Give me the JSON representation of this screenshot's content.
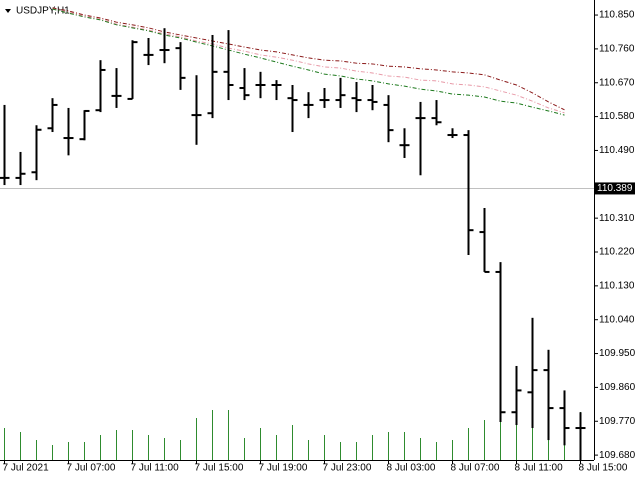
{
  "chart_data": {
    "type": "ohlc",
    "title": "USDJPY,H1",
    "categories": [
      "7 Jul 2021",
      null,
      null,
      null,
      "7 Jul 07:00",
      null,
      null,
      null,
      "7 Jul 11:00",
      null,
      null,
      null,
      "7 Jul 15:00",
      null,
      null,
      null,
      "7 Jul 19:00",
      null,
      null,
      null,
      "7 Jul 23:00",
      null,
      null,
      null,
      "8 Jul 03:00",
      null,
      null,
      null,
      "8 Jul 07:00",
      null,
      null,
      null,
      "8 Jul 11:00",
      null,
      null,
      null,
      "8 Jul 15:00"
    ],
    "open": [
      110.417,
      110.417,
      110.432,
      110.549,
      110.523,
      110.52,
      110.597,
      110.635,
      110.627,
      110.744,
      110.757,
      110.762,
      110.584,
      110.589,
      110.699,
      110.656,
      110.664,
      110.664,
      110.629,
      110.611,
      110.624,
      110.624,
      110.629,
      110.624,
      110.611,
      110.504,
      110.576,
      110.576,
      110.531,
      110.531,
      110.273,
      110.167,
      109.794,
      109.847,
      109.906,
      109.805,
      109.752
    ],
    "high": [
      110.611,
      110.486,
      110.557,
      110.629,
      110.603,
      110.597,
      110.73,
      110.709,
      110.783,
      110.789,
      110.815,
      110.778,
      110.69,
      110.797,
      110.81,
      110.709,
      110.699,
      110.677,
      110.664,
      110.645,
      110.656,
      110.683,
      110.672,
      110.664,
      110.637,
      110.549,
      110.619,
      110.624,
      110.549,
      110.544,
      110.337,
      110.193,
      109.917,
      110.045,
      109.96,
      109.852,
      109.794
    ],
    "low": [
      110.398,
      110.398,
      110.411,
      110.539,
      110.477,
      110.517,
      110.592,
      110.603,
      110.627,
      110.717,
      110.722,
      110.651,
      110.505,
      110.576,
      110.624,
      110.624,
      110.629,
      110.624,
      110.539,
      110.576,
      110.603,
      110.603,
      110.592,
      110.597,
      110.512,
      110.47,
      110.424,
      110.557,
      110.523,
      110.212,
      110.167,
      109.768,
      109.76,
      109.752,
      109.72,
      109.706,
      109.667
    ],
    "close": [
      110.417,
      110.428,
      110.545,
      110.611,
      110.523,
      110.595,
      110.704,
      110.635,
      110.778,
      110.744,
      110.757,
      110.683,
      110.584,
      110.699,
      110.664,
      110.637,
      110.664,
      110.664,
      110.624,
      110.611,
      110.624,
      110.637,
      110.624,
      110.619,
      110.544,
      110.504,
      110.576,
      110.565,
      110.531,
      110.278,
      110.167,
      109.794,
      109.852,
      109.906,
      109.805,
      109.752,
      109.752
    ],
    "volume": [
      320,
      280,
      200,
      150,
      180,
      180,
      250,
      300,
      300,
      250,
      220,
      200,
      420,
      500,
      500,
      220,
      320,
      250,
      350,
      200,
      250,
      180,
      180,
      250,
      280,
      280,
      220,
      180,
      200,
      320,
      400,
      620,
      350,
      350,
      300,
      180,
      480
    ],
    "bar_color": "#000000",
    "volume_color": "#2e8b2e",
    "series": [
      {
        "color": "#8b1a1a",
        "values": [
          null,
          null,
          null,
          110.869,
          110.861,
          110.85,
          110.842,
          110.831,
          110.824,
          110.816,
          110.805,
          110.797,
          110.789,
          110.781,
          110.773,
          110.765,
          110.757,
          110.752,
          110.744,
          110.736,
          110.73,
          110.728,
          110.722,
          110.72,
          110.714,
          110.712,
          110.707,
          110.704,
          110.699,
          110.696,
          110.691,
          110.677,
          110.664,
          110.643,
          110.619,
          110.598,
          null
        ]
      },
      {
        "color": "#e89aa8",
        "values": [
          null,
          null,
          null,
          110.866,
          110.858,
          110.847,
          110.839,
          110.826,
          110.818,
          110.81,
          110.8,
          110.792,
          110.781,
          110.773,
          110.762,
          110.754,
          110.744,
          110.738,
          110.73,
          110.72,
          110.712,
          110.709,
          110.701,
          110.696,
          110.688,
          110.685,
          110.677,
          110.675,
          110.667,
          110.664,
          110.659,
          110.648,
          110.637,
          110.621,
          110.603,
          110.59,
          null
        ]
      },
      {
        "color": "#1e7a1e",
        "values": [
          null,
          null,
          null,
          110.866,
          110.855,
          110.845,
          110.837,
          110.824,
          110.816,
          110.808,
          110.797,
          110.789,
          110.778,
          110.768,
          110.757,
          110.746,
          110.736,
          110.725,
          110.714,
          110.704,
          110.693,
          110.688,
          110.68,
          110.675,
          110.667,
          110.661,
          110.653,
          110.648,
          110.64,
          110.637,
          110.632,
          110.621,
          110.616,
          110.605,
          110.595,
          110.584,
          null
        ]
      }
    ],
    "current_price": 110.389,
    "ylim": [
      109.667,
      110.89
    ],
    "yticks": [
      {
        "value": 110.85,
        "label": "110.850"
      },
      {
        "value": 110.76,
        "label": "110.760"
      },
      {
        "value": 110.67,
        "label": "110.670"
      },
      {
        "value": 110.58,
        "label": "110.580"
      },
      {
        "value": 110.49,
        "label": "110.490"
      },
      {
        "value": 110.31,
        "label": "110.310"
      },
      {
        "value": 110.22,
        "label": "110.220"
      },
      {
        "value": 110.13,
        "label": "110.130"
      },
      {
        "value": 110.04,
        "label": "110.040"
      },
      {
        "value": 109.95,
        "label": "109.950"
      },
      {
        "value": 109.86,
        "label": "109.860"
      },
      {
        "value": 109.77,
        "label": "109.770"
      },
      {
        "value": 109.68,
        "label": "109.680"
      }
    ]
  }
}
